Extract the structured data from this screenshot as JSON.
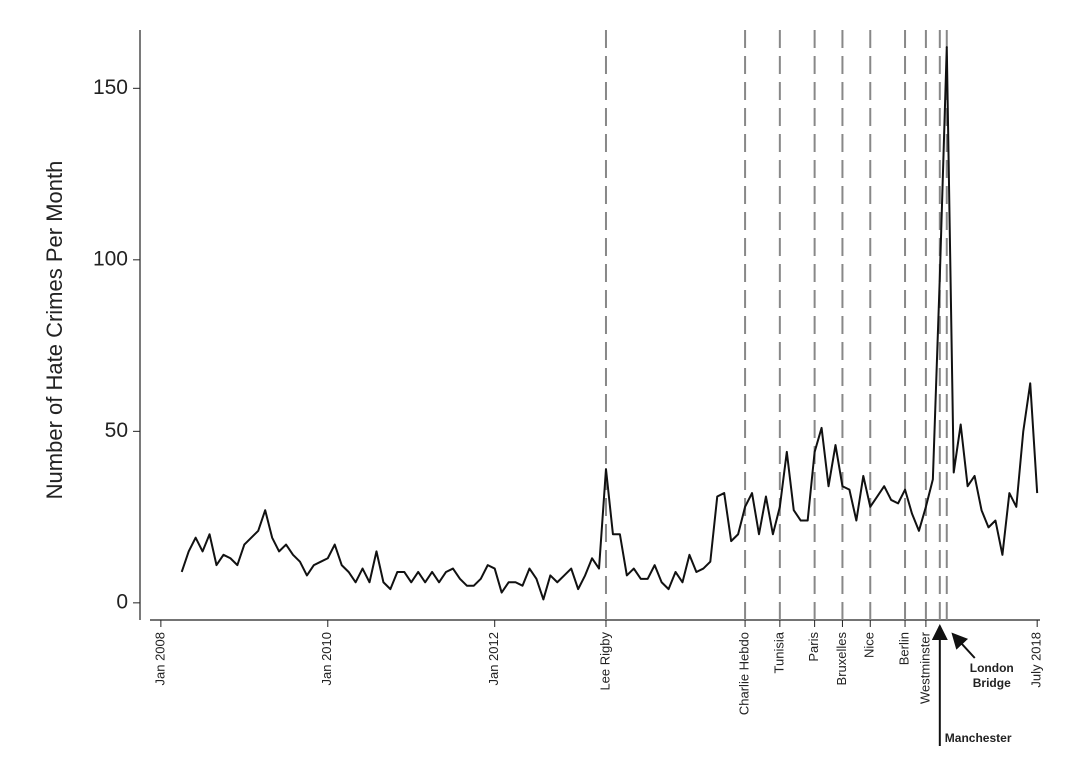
{
  "chart_data": {
    "type": "line",
    "ylabel": "Number of Hate Crimes Per Month",
    "x": [
      "2008-04",
      "2008-05",
      "2008-06",
      "2008-07",
      "2008-08",
      "2008-09",
      "2008-10",
      "2008-11",
      "2008-12",
      "2009-01",
      "2009-02",
      "2009-03",
      "2009-04",
      "2009-05",
      "2009-06",
      "2009-07",
      "2009-08",
      "2009-09",
      "2009-10",
      "2009-11",
      "2009-12",
      "2010-01",
      "2010-02",
      "2010-03",
      "2010-04",
      "2010-05",
      "2010-06",
      "2010-07",
      "2010-08",
      "2010-09",
      "2010-10",
      "2010-11",
      "2010-12",
      "2011-01",
      "2011-02",
      "2011-03",
      "2011-04",
      "2011-05",
      "2011-06",
      "2011-07",
      "2011-08",
      "2011-09",
      "2011-10",
      "2011-11",
      "2011-12",
      "2012-01",
      "2012-02",
      "2012-03",
      "2012-04",
      "2012-05",
      "2012-06",
      "2012-07",
      "2012-08",
      "2012-09",
      "2012-10",
      "2012-11",
      "2012-12",
      "2013-01",
      "2013-02",
      "2013-03",
      "2013-04",
      "2013-05",
      "2013-06",
      "2013-07",
      "2013-08",
      "2013-09",
      "2013-10",
      "2013-11",
      "2013-12",
      "2014-01",
      "2014-02",
      "2014-03",
      "2014-04",
      "2014-05",
      "2014-06",
      "2014-07",
      "2014-08",
      "2014-09",
      "2014-10",
      "2014-11",
      "2014-12",
      "2015-01",
      "2015-02",
      "2015-03",
      "2015-04",
      "2015-05",
      "2015-06",
      "2015-07",
      "2015-08",
      "2015-09",
      "2015-10",
      "2015-11",
      "2015-12",
      "2016-01",
      "2016-02",
      "2016-03",
      "2016-04",
      "2016-05",
      "2016-06",
      "2016-07",
      "2016-08",
      "2016-09",
      "2016-10",
      "2016-11",
      "2016-12",
      "2017-01",
      "2017-02",
      "2017-03",
      "2017-04",
      "2017-05",
      "2017-06",
      "2017-07",
      "2017-08",
      "2017-09",
      "2017-10",
      "2017-11",
      "2017-12",
      "2018-01",
      "2018-02",
      "2018-03",
      "2018-04",
      "2018-05",
      "2018-06",
      "2018-07"
    ],
    "series": [
      {
        "color": "#111111",
        "values": [
          9,
          15,
          19,
          15,
          20,
          11,
          14,
          13,
          11,
          17,
          19,
          21,
          27,
          19,
          15,
          17,
          14,
          12,
          8,
          11,
          12,
          13,
          17,
          11,
          9,
          6,
          10,
          6,
          15,
          6,
          4,
          9,
          9,
          6,
          9,
          6,
          9,
          6,
          9,
          10,
          7,
          5,
          5,
          7,
          11,
          10,
          3,
          6,
          6,
          5,
          10,
          7,
          1,
          8,
          6,
          8,
          10,
          4,
          8,
          13,
          10,
          39,
          20,
          20,
          8,
          10,
          7,
          7,
          11,
          6,
          4,
          9,
          6,
          14,
          9,
          10,
          12,
          31,
          32,
          18,
          20,
          28,
          32,
          20,
          31,
          20,
          28,
          44,
          27,
          24,
          24,
          44,
          51,
          34,
          46,
          34,
          33,
          24,
          37,
          28,
          31,
          34,
          30,
          29,
          33,
          26,
          21,
          28,
          36,
          95,
          162,
          38,
          52,
          34,
          37,
          27,
          22,
          24,
          14,
          32,
          28,
          50,
          64,
          32
        ]
      }
    ],
    "xlim": [
      "2007-10",
      "2018-11"
    ],
    "ylim": [
      -5,
      167
    ],
    "yticks": [
      0,
      50,
      100,
      150
    ],
    "xticks": [
      {
        "value": "2008-01",
        "label": "Jan 2008"
      },
      {
        "value": "2010-01",
        "label": "Jan 2010"
      },
      {
        "value": "2012-01",
        "label": "Jan 2012"
      },
      {
        "value": "2013-05",
        "label": "Lee Rigby",
        "dashed": true
      },
      {
        "value": "2015-01",
        "label": "Charlie Hebdo",
        "dashed": true
      },
      {
        "value": "2015-06",
        "label": "Tunisia",
        "dashed": true
      },
      {
        "value": "2015-11",
        "label": "Paris",
        "dashed": true
      },
      {
        "value": "2016-03",
        "label": "Bruxelles",
        "dashed": true
      },
      {
        "value": "2016-07",
        "label": "Nice",
        "dashed": true
      },
      {
        "value": "2016-12",
        "label": "Berlin",
        "dashed": true
      },
      {
        "value": "2017-03",
        "label": "Westminster",
        "dashed": true
      },
      {
        "value": "2018-07",
        "label": "July 2018"
      }
    ],
    "annotations": [
      {
        "x": "2017-05",
        "text": [
          "Manchester"
        ],
        "dashed": true
      },
      {
        "x": "2017-06",
        "text": [
          "London",
          "Bridge"
        ],
        "dashed": true
      }
    ]
  }
}
